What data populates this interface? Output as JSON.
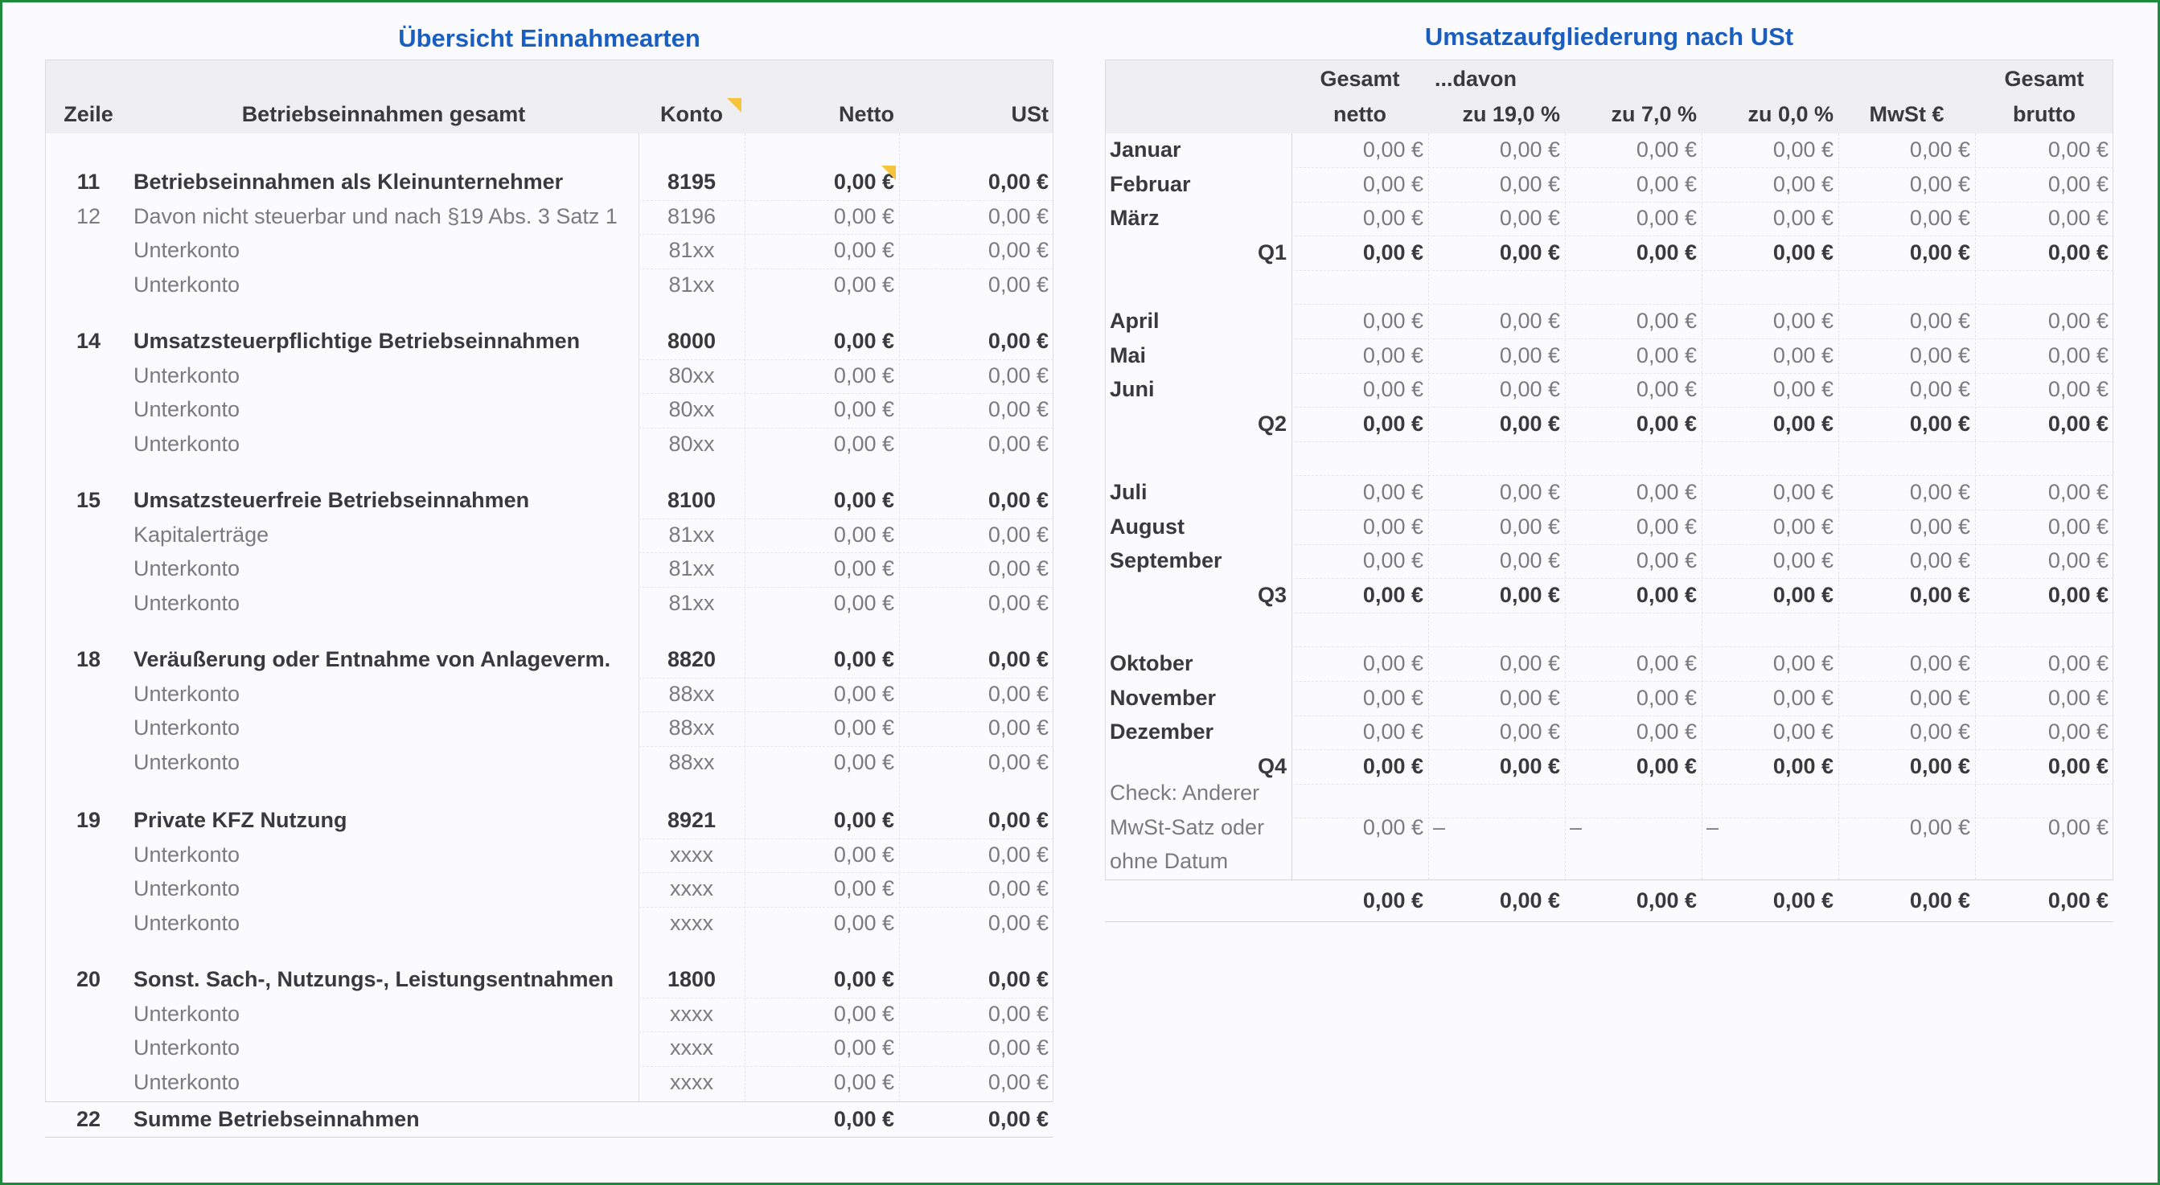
{
  "left": {
    "title": "Übersicht Einnahmearten",
    "headers": {
      "zeile": "Zeile",
      "desc": "Betriebseinnahmen gesamt",
      "konto": "Konto",
      "netto": "Netto",
      "ust": "USt"
    },
    "rows": [
      {
        "zeile": "11",
        "desc": "Betriebseinnahmen als Kleinunternehmer",
        "konto": "8195",
        "netto": "0,00 €",
        "ust": "0,00 €",
        "bold": true,
        "marker": true
      },
      {
        "zeile": "12",
        "desc": "Davon nicht steuerbar und nach §19 Abs. 3 Satz 1",
        "konto": "8196",
        "netto": "0,00 €",
        "ust": "0,00 €",
        "bold": false
      },
      {
        "zeile": "",
        "desc": "Unterkonto",
        "konto": "81xx",
        "netto": "0,00 €",
        "ust": "0,00 €",
        "bold": false
      },
      {
        "zeile": "",
        "desc": "Unterkonto",
        "konto": "81xx",
        "netto": "0,00 €",
        "ust": "0,00 €",
        "bold": false
      },
      {
        "zeile": "14",
        "desc": "Umsatzsteuerpflichtige Betriebseinnahmen",
        "konto": "8000",
        "netto": "0,00 €",
        "ust": "0,00 €",
        "bold": true
      },
      {
        "zeile": "",
        "desc": "Unterkonto",
        "konto": "80xx",
        "netto": "0,00 €",
        "ust": "0,00 €",
        "bold": false
      },
      {
        "zeile": "",
        "desc": "Unterkonto",
        "konto": "80xx",
        "netto": "0,00 €",
        "ust": "0,00 €",
        "bold": false
      },
      {
        "zeile": "",
        "desc": "Unterkonto",
        "konto": "80xx",
        "netto": "0,00 €",
        "ust": "0,00 €",
        "bold": false
      },
      {
        "zeile": "15",
        "desc": "Umsatzsteuerfreie Betriebseinnahmen",
        "konto": "8100",
        "netto": "0,00 €",
        "ust": "0,00 €",
        "bold": true
      },
      {
        "zeile": "",
        "desc": "Kapitalerträge",
        "konto": "81xx",
        "netto": "0,00 €",
        "ust": "0,00 €",
        "bold": false
      },
      {
        "zeile": "",
        "desc": "Unterkonto",
        "konto": "81xx",
        "netto": "0,00 €",
        "ust": "0,00 €",
        "bold": false
      },
      {
        "zeile": "",
        "desc": "Unterkonto",
        "konto": "81xx",
        "netto": "0,00 €",
        "ust": "0,00 €",
        "bold": false
      },
      {
        "zeile": "18",
        "desc": "Veräußerung oder Entnahme von Anlageverm.",
        "konto": "8820",
        "netto": "0,00 €",
        "ust": "0,00 €",
        "bold": true
      },
      {
        "zeile": "",
        "desc": "Unterkonto",
        "konto": "88xx",
        "netto": "0,00 €",
        "ust": "0,00 €",
        "bold": false
      },
      {
        "zeile": "",
        "desc": "Unterkonto",
        "konto": "88xx",
        "netto": "0,00 €",
        "ust": "0,00 €",
        "bold": false
      },
      {
        "zeile": "",
        "desc": "Unterkonto",
        "konto": "88xx",
        "netto": "0,00 €",
        "ust": "0,00 €",
        "bold": false
      },
      {
        "zeile": "19",
        "desc": "Private KFZ Nutzung",
        "konto": "8921",
        "netto": "0,00 €",
        "ust": "0,00 €",
        "bold": true
      },
      {
        "zeile": "",
        "desc": "Unterkonto",
        "konto": "xxxx",
        "netto": "0,00 €",
        "ust": "0,00 €",
        "bold": false
      },
      {
        "zeile": "",
        "desc": "Unterkonto",
        "konto": "xxxx",
        "netto": "0,00 €",
        "ust": "0,00 €",
        "bold": false
      },
      {
        "zeile": "",
        "desc": "Unterkonto",
        "konto": "xxxx",
        "netto": "0,00 €",
        "ust": "0,00 €",
        "bold": false
      },
      {
        "zeile": "20",
        "desc": "Sonst. Sach-, Nutzungs-, Leistungsentnahmen",
        "konto": "1800",
        "netto": "0,00 €",
        "ust": "0,00 €",
        "bold": true
      },
      {
        "zeile": "",
        "desc": "Unterkonto",
        "konto": "xxxx",
        "netto": "0,00 €",
        "ust": "0,00 €",
        "bold": false
      },
      {
        "zeile": "",
        "desc": "Unterkonto",
        "konto": "xxxx",
        "netto": "0,00 €",
        "ust": "0,00 €",
        "bold": false
      },
      {
        "zeile": "",
        "desc": "Unterkonto",
        "konto": "xxxx",
        "netto": "0,00 €",
        "ust": "0,00 €",
        "bold": false
      }
    ],
    "total": {
      "zeile": "22",
      "desc": "Summe Betriebseinnahmen",
      "netto": "0,00 €",
      "ust": "0,00 €"
    }
  },
  "right": {
    "title": "Umsatzaufgliederung nach USt",
    "headers": {
      "gesamt_netto_1": "Gesamt",
      "gesamt_netto_2": "netto",
      "davon": "...davon",
      "zu19": "zu 19,0 %",
      "zu7": "zu 7,0 %",
      "zu0": "zu 0,0 %",
      "mwst": "MwSt €",
      "gesamt_brutto_1": "Gesamt",
      "gesamt_brutto_2": "brutto"
    },
    "rows": [
      {
        "label": "Januar",
        "type": "month",
        "values": [
          "0,00 €",
          "0,00 €",
          "0,00 €",
          "0,00 €",
          "0,00 €",
          "0,00 €"
        ]
      },
      {
        "label": "Februar",
        "type": "month",
        "values": [
          "0,00 €",
          "0,00 €",
          "0,00 €",
          "0,00 €",
          "0,00 €",
          "0,00 €"
        ]
      },
      {
        "label": "März",
        "type": "month",
        "values": [
          "0,00 €",
          "0,00 €",
          "0,00 €",
          "0,00 €",
          "0,00 €",
          "0,00 €"
        ]
      },
      {
        "label": "Q1",
        "type": "quarter",
        "values": [
          "0,00 €",
          "0,00 €",
          "0,00 €",
          "0,00 €",
          "0,00 €",
          "0,00 €"
        ]
      },
      {
        "label": "April",
        "type": "month",
        "values": [
          "0,00 €",
          "0,00 €",
          "0,00 €",
          "0,00 €",
          "0,00 €",
          "0,00 €"
        ]
      },
      {
        "label": "Mai",
        "type": "month",
        "values": [
          "0,00 €",
          "0,00 €",
          "0,00 €",
          "0,00 €",
          "0,00 €",
          "0,00 €"
        ]
      },
      {
        "label": "Juni",
        "type": "month",
        "values": [
          "0,00 €",
          "0,00 €",
          "0,00 €",
          "0,00 €",
          "0,00 €",
          "0,00 €"
        ]
      },
      {
        "label": "Q2",
        "type": "quarter",
        "values": [
          "0,00 €",
          "0,00 €",
          "0,00 €",
          "0,00 €",
          "0,00 €",
          "0,00 €"
        ]
      },
      {
        "label": "Juli",
        "type": "month",
        "values": [
          "0,00 €",
          "0,00 €",
          "0,00 €",
          "0,00 €",
          "0,00 €",
          "0,00 €"
        ]
      },
      {
        "label": "August",
        "type": "month",
        "values": [
          "0,00 €",
          "0,00 €",
          "0,00 €",
          "0,00 €",
          "0,00 €",
          "0,00 €"
        ]
      },
      {
        "label": "September",
        "type": "month",
        "values": [
          "0,00 €",
          "0,00 €",
          "0,00 €",
          "0,00 €",
          "0,00 €",
          "0,00 €"
        ]
      },
      {
        "label": "Q3",
        "type": "quarter",
        "values": [
          "0,00 €",
          "0,00 €",
          "0,00 €",
          "0,00 €",
          "0,00 €",
          "0,00 €"
        ]
      },
      {
        "label": "Oktober",
        "type": "month",
        "values": [
          "0,00 €",
          "0,00 €",
          "0,00 €",
          "0,00 €",
          "0,00 €",
          "0,00 €"
        ]
      },
      {
        "label": "November",
        "type": "month",
        "values": [
          "0,00 €",
          "0,00 €",
          "0,00 €",
          "0,00 €",
          "0,00 €",
          "0,00 €"
        ]
      },
      {
        "label": "Dezember",
        "type": "month",
        "values": [
          "0,00 €",
          "0,00 €",
          "0,00 €",
          "0,00 €",
          "0,00 €",
          "0,00 €"
        ]
      },
      {
        "label": "Q4",
        "type": "quarter",
        "values": [
          "0,00 €",
          "0,00 €",
          "0,00 €",
          "0,00 €",
          "0,00 €",
          "0,00 €"
        ]
      }
    ],
    "check": {
      "label_lines": [
        "Check: Anderer",
        "MwSt-Satz oder",
        "ohne Datum"
      ],
      "values": [
        "0,00 €",
        "–",
        "–",
        "–",
        "0,00 €",
        "0,00 €"
      ]
    },
    "total": [
      "0,00 €",
      "0,00 €",
      "0,00 €",
      "0,00 €",
      "0,00 €",
      "0,00 €"
    ]
  },
  "colors": {
    "title": "#1a5fc0",
    "frame": "#1e8a3c",
    "header_bg": "#efeef0",
    "marker": "#f6c33b"
  }
}
